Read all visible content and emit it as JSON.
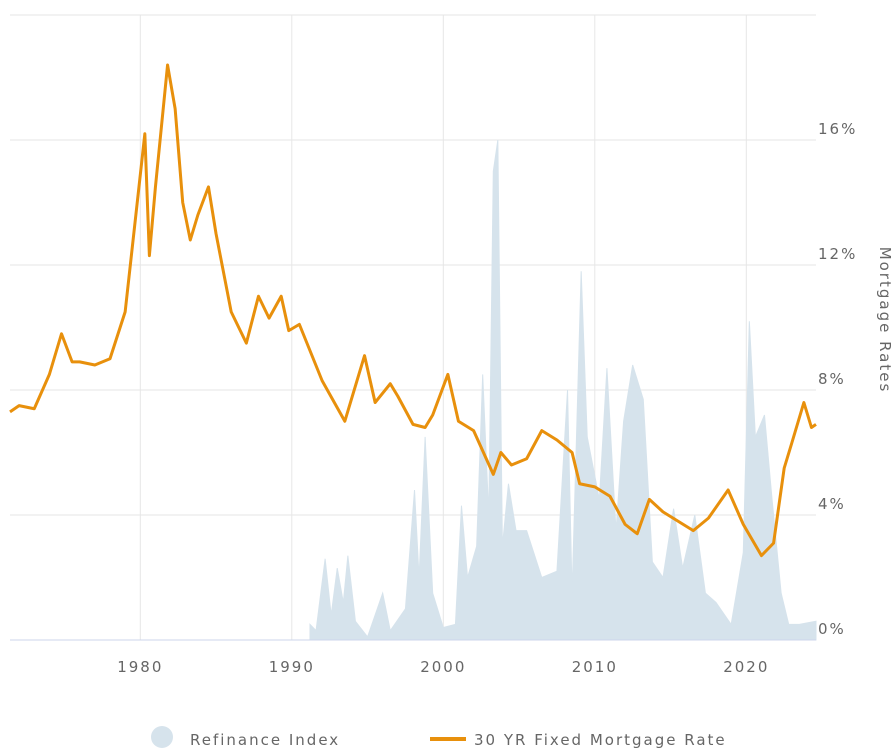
{
  "chart_data": {
    "type": "line",
    "y_axis_label": "Mortgage Rates",
    "xlim": [
      1971.4,
      2024.6
    ],
    "xticks": [
      1980,
      1990,
      2000,
      2010,
      2020
    ],
    "ylim": [
      0,
      20
    ],
    "yticks": [
      {
        "value": 0,
        "label": "0%"
      },
      {
        "value": 4,
        "label": "4%"
      },
      {
        "value": 8,
        "label": "8%"
      },
      {
        "value": 12,
        "label": "12%"
      },
      {
        "value": 16,
        "label": "16%"
      }
    ],
    "grid": true,
    "legend": "bottom",
    "series": [
      {
        "name": "Refinance Index",
        "kind": "area",
        "color": "#d6e3ec",
        "x": [
          1991.2,
          1991.6,
          1992.2,
          1992.6,
          1993,
          1993.4,
          1993.7,
          1994.2,
          1995,
          1996,
          1996.5,
          1997.5,
          1998.1,
          1998.4,
          1998.8,
          1999.3,
          2000,
          2000.8,
          2001.2,
          2001.6,
          2002.2,
          2002.6,
          2003,
          2003.3,
          2003.6,
          2003.9,
          2004.3,
          2004.8,
          2005.5,
          2006.5,
          2007.5,
          2008.2,
          2008.5,
          2009.1,
          2009.5,
          2010.3,
          2010.8,
          2011.4,
          2011.9,
          2012.5,
          2013.2,
          2013.8,
          2014.5,
          2015.2,
          2015.8,
          2016.6,
          2017.3,
          2018,
          2019,
          2019.8,
          2020.2,
          2020.6,
          2021.2,
          2021.7,
          2022.3,
          2022.8,
          2023.5,
          2024.6
        ],
        "values": [
          0.5,
          0.3,
          2.6,
          0.8,
          2.3,
          1.2,
          2.7,
          0.6,
          0.1,
          1.5,
          0.3,
          1.0,
          4.8,
          2,
          6.5,
          1.5,
          0.4,
          0.5,
          4.3,
          2,
          3,
          8.5,
          4,
          15,
          16,
          3,
          5,
          3.5,
          3.5,
          2,
          2.2,
          8,
          1.5,
          11.8,
          6.5,
          4.5,
          8.7,
          3.5,
          7,
          8.8,
          7.7,
          2.5,
          2,
          4.2,
          2.3,
          4,
          1.5,
          1.2,
          0.5,
          2.8,
          10.2,
          6.5,
          7.2,
          4.5,
          1.5,
          0.5,
          0.5,
          0.6
        ]
      },
      {
        "name": "30 YR Fixed Mortgage Rate",
        "kind": "line",
        "color": "#e8900c",
        "x": [
          1971.4,
          1972,
          1973,
          1974,
          1974.8,
          1975.5,
          1976,
          1977,
          1978,
          1979,
          1980.3,
          1980.6,
          1981,
          1981.8,
          1982.3,
          1982.8,
          1983.3,
          1983.8,
          1984.5,
          1985,
          1986,
          1987,
          1987.8,
          1988.5,
          1989.3,
          1989.8,
          1990.5,
          1991,
          1992,
          1993.5,
          1994.8,
          1995.5,
          1996.5,
          1997,
          1998,
          1998.8,
          1999.3,
          2000.3,
          2001,
          2002,
          2003.3,
          2003.8,
          2004.5,
          2005.5,
          2006.5,
          2007.5,
          2008.5,
          2009,
          2010,
          2011,
          2012,
          2012.8,
          2013.6,
          2014.5,
          2015.5,
          2016.5,
          2017.5,
          2018.8,
          2019.8,
          2021,
          2021.8,
          2022.5,
          2023,
          2023.8,
          2024.3,
          2024.6
        ],
        "values": [
          7.3,
          7.5,
          7.4,
          8.5,
          9.8,
          8.9,
          8.9,
          8.8,
          9.0,
          10.5,
          16.2,
          12.3,
          14.5,
          18.4,
          17.0,
          14,
          12.8,
          13.6,
          14.5,
          13.0,
          10.5,
          9.5,
          11.0,
          10.3,
          11.0,
          9.9,
          10.1,
          9.5,
          8.3,
          7.0,
          9.1,
          7.6,
          8.2,
          7.8,
          6.9,
          6.8,
          7.2,
          8.5,
          7.0,
          6.7,
          5.3,
          6.0,
          5.6,
          5.8,
          6.7,
          6.4,
          6.0,
          5.0,
          4.9,
          4.6,
          3.7,
          3.4,
          4.5,
          4.1,
          3.8,
          3.5,
          3.9,
          4.8,
          3.7,
          2.7,
          3.1,
          5.5,
          6.3,
          7.6,
          6.8,
          6.9
        ]
      }
    ]
  }
}
